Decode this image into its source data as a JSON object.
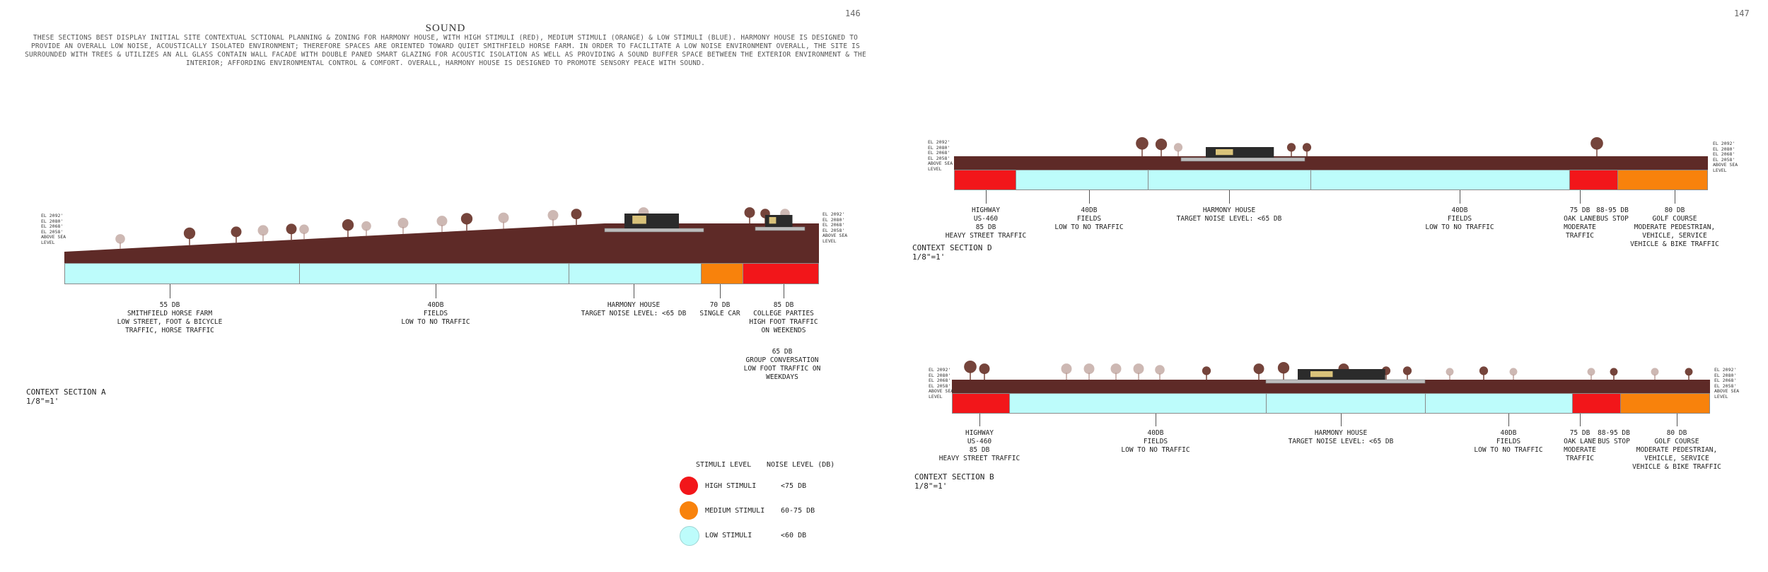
{
  "page": {
    "left_number": "146",
    "right_number": "147",
    "title": "SOUND",
    "intro": "THESE SECTIONS BEST DISPLAY INITIAL SITE CONTEXTUAL SCTIONAL PLANNING & ZONING FOR HARMONY HOUSE, WITH HIGH STIMULI (RED), MEDIUM STIMULI (ORANGE) & LOW STIMULI (BLUE). HARMONY HOUSE IS DESIGNED TO PROVIDE AN OVERALL LOW NOISE, ACOUSTICALLY ISOLATED ENVIRONMENT; THEREFORE SPACES ARE ORIENTED TOWARD QUIET SMITHFIELD HORSE FARM. IN ORDER TO FACILITATE A LOW NOISE ENVIRONMENT OVERALL, THE SITE IS SURROUNDED WITH TREES & UTILIZES AN ALL GLASS CONTAIN WALL FACADE WITH DOUBLE PANED SMART GLAZING FOR ACOUSTIC ISOLATION AS WELL AS PROVIDING A SOUND BUFFER SPACE BETWEEN THE EXTERIOR ENVIRONMENT & THE INTERIOR; AFFORDING ENVIRONMENTAL CONTROL & COMFORT. OVERALL, HARMONY HOUSE IS DESIGNED TO PROMOTE SENSORY PEACE WITH SOUND."
  },
  "colors": {
    "ground": "#5e2a27",
    "high": "#f2161a",
    "medium": "#f8820c",
    "low": "#bdfcfb",
    "tree_dark": "#6e3a30",
    "tree_light": "#b89a93"
  },
  "elevation": [
    "EL 2092'",
    "EL 2080'",
    "EL 2068'",
    "EL 2058'",
    "ABOVE SEA",
    "LEVEL"
  ],
  "section_a": {
    "name": "CONTEXT SECTION A",
    "scale": "1/8\"=1'",
    "zones": [
      {
        "level": "low",
        "fraction": 0.312
      },
      {
        "level": "low",
        "fraction": 0.358
      },
      {
        "level": "low",
        "fraction": 0.175
      },
      {
        "level": "medium",
        "fraction": 0.055
      },
      {
        "level": "high",
        "fraction": 0.1
      }
    ],
    "labels": [
      {
        "lines": [
          "55 DB",
          "SMITHFIELD HORSE FARM",
          "LOW STREET, FOOT & BICYCLE",
          "TRAFFIC, HORSE TRAFFIC"
        ]
      },
      {
        "lines": [
          "40DB",
          "FIELDS",
          "LOW TO NO TRAFFIC"
        ]
      },
      {
        "lines": [
          "HARMONY HOUSE",
          "TARGET NOISE LEVEL: <65 DB"
        ]
      },
      {
        "lines": [
          "70 DB",
          "SINGLE CAR"
        ]
      },
      {
        "lines": [
          "85 DB",
          "COLLEGE PARTIES",
          "HIGH FOOT TRAFFIC",
          "ON WEEKENDS"
        ]
      },
      {
        "lines": [
          "65 DB",
          "GROUP CONVERSATION",
          "LOW FOOT TRAFFIC ON",
          "WEEKDAYS"
        ]
      }
    ]
  },
  "section_d": {
    "name": "CONTEXT SECTION D",
    "scale": "1/8\"=1'",
    "zones": [
      {
        "level": "high",
        "fraction": 0.081
      },
      {
        "level": "low",
        "fraction": 0.176
      },
      {
        "level": "low",
        "fraction": 0.216
      },
      {
        "level": "low",
        "fraction": 0.345
      },
      {
        "level": "high",
        "fraction": 0.063
      },
      {
        "level": "medium",
        "fraction": 0.119
      }
    ],
    "labels": [
      {
        "lines": [
          "HIGHWAY",
          "US-460",
          "85 DB",
          "HEAVY STREET TRAFFIC"
        ]
      },
      {
        "lines": [
          "40DB",
          "FIELDS",
          "LOW TO NO TRAFFIC"
        ]
      },
      {
        "lines": [
          "HARMONY HOUSE",
          "TARGET NOISE LEVEL: <65 DB"
        ]
      },
      {
        "lines": [
          "40DB",
          "FIELDS",
          "LOW TO NO TRAFFIC"
        ]
      },
      {
        "lines": [
          "75 DB",
          "OAK LANE",
          "MODERATE",
          "TRAFFIC"
        ]
      },
      {
        "lines": [
          "88-95 DB",
          "BUS STOP"
        ]
      },
      {
        "lines": [
          "80 DB",
          "GOLF COURSE",
          "MODERATE PEDESTRIAN,",
          "VEHICLE, SERVICE",
          "VEHICLE & BIKE TRAFFIC"
        ]
      }
    ]
  },
  "section_b": {
    "name": "CONTEXT SECTION B",
    "scale": "1/8\"=1'",
    "zones": [
      {
        "level": "high",
        "fraction": 0.075
      },
      {
        "level": "low",
        "fraction": 0.34
      },
      {
        "level": "low",
        "fraction": 0.21
      },
      {
        "level": "low",
        "fraction": 0.195
      },
      {
        "level": "high",
        "fraction": 0.063
      },
      {
        "level": "medium",
        "fraction": 0.117
      }
    ],
    "labels": [
      {
        "lines": [
          "HIGHWAY",
          "US-460",
          "85 DB",
          "HEAVY STREET TRAFFIC"
        ]
      },
      {
        "lines": [
          "40DB",
          "FIELDS",
          "LOW TO NO TRAFFIC"
        ]
      },
      {
        "lines": [
          "HARMONY HOUSE",
          "TARGET NOISE LEVEL: <65 DB"
        ]
      },
      {
        "lines": [
          "40DB",
          "FIELDS",
          "LOW TO NO TRAFFIC"
        ]
      },
      {
        "lines": [
          "75 DB",
          "OAK LANE",
          "MODERATE",
          "TRAFFIC"
        ]
      },
      {
        "lines": [
          "88-95 DB",
          "BUS STOP"
        ]
      },
      {
        "lines": [
          "80 DB",
          "GOLF COURSE",
          "MODERATE PEDESTRIAN,",
          "VEHICLE, SERVICE",
          "VEHICLE & BIKE TRAFFIC"
        ]
      }
    ]
  },
  "legend": {
    "header_stimuli": "STIMULI LEVEL",
    "header_noise": "NOISE LEVEL (DB)",
    "rows": [
      {
        "level": "high",
        "label": "HIGH STIMULI",
        "noise": "<75 DB"
      },
      {
        "level": "medium",
        "label": "MEDIUM STIMULI",
        "noise": "60-75 DB"
      },
      {
        "level": "low",
        "label": "LOW STIMULI",
        "noise": "<60 DB"
      }
    ]
  }
}
